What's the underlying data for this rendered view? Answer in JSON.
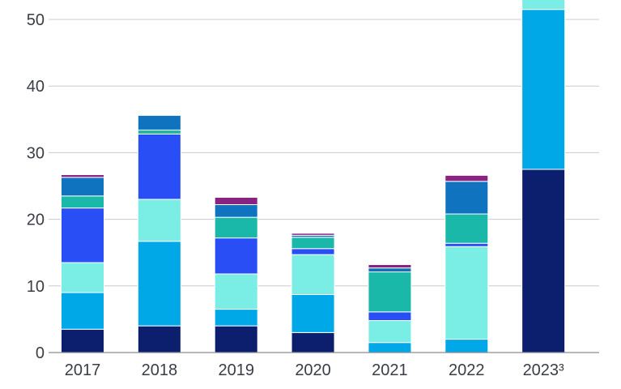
{
  "chart_data": {
    "type": "bar",
    "stacked": true,
    "categories": [
      "2017",
      "2018",
      "2019",
      "2020",
      "2021",
      "2022",
      "2023³"
    ],
    "ylim": [
      0,
      53
    ],
    "yticks": [
      0,
      10,
      20,
      30,
      40,
      50
    ],
    "grid": true,
    "series": [
      {
        "color": "#0b1f6e",
        "values": [
          3.5,
          4.0,
          4.0,
          3.0,
          0.0,
          0.0,
          27.5
        ]
      },
      {
        "color": "#00a8e8",
        "values": [
          5.5,
          12.7,
          2.5,
          5.7,
          1.5,
          2.0,
          24.0
        ]
      },
      {
        "color": "#7aede5",
        "values": [
          4.5,
          6.3,
          5.3,
          6.0,
          3.3,
          13.9,
          1.5
        ]
      },
      {
        "color": "#2a4ef5",
        "values": [
          8.2,
          9.8,
          5.4,
          0.9,
          1.3,
          0.5,
          0.0
        ]
      },
      {
        "color": "#19b8a8",
        "values": [
          1.8,
          0.6,
          3.1,
          1.7,
          6.0,
          4.4,
          0.0
        ]
      },
      {
        "color": "#0f73c0",
        "values": [
          2.8,
          2.2,
          1.9,
          0.3,
          0.6,
          4.9,
          0.0
        ]
      },
      {
        "color": "#8a2282",
        "values": [
          0.4,
          0.0,
          1.1,
          0.3,
          0.5,
          0.9,
          0.0
        ]
      }
    ]
  }
}
